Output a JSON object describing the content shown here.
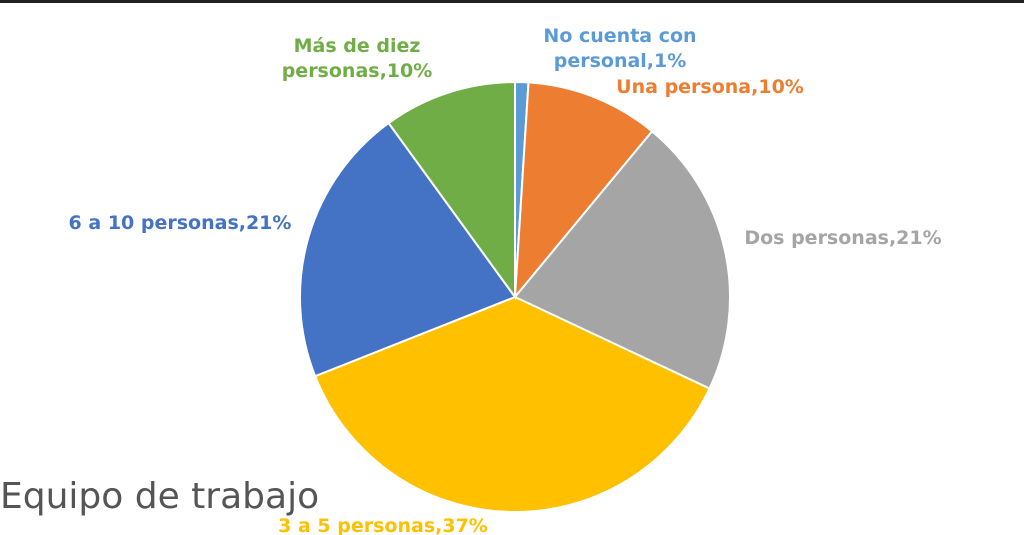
{
  "chart_data": {
    "type": "pie",
    "title": "Equipo de trabajo",
    "slices": [
      {
        "label_lines": [
          "No cuenta con",
          "personal,1%"
        ],
        "category": "No cuenta con personal",
        "value": 1,
        "color": "#5B9BD5"
      },
      {
        "label_lines": [
          "Una persona,10%"
        ],
        "category": "Una persona",
        "value": 10,
        "color": "#ED7D31"
      },
      {
        "label_lines": [
          "Dos personas,21%"
        ],
        "category": "Dos personas",
        "value": 21,
        "color": "#A5A5A5"
      },
      {
        "label_lines": [
          "3 a 5 personas,37%"
        ],
        "category": "3 a 5 personas",
        "value": 37,
        "color": "#FFC000"
      },
      {
        "label_lines": [
          "6 a 10 personas,21%"
        ],
        "category": "6 a 10 personas",
        "value": 21,
        "color": "#4472C4"
      },
      {
        "label_lines": [
          "Más de diez",
          "personas,10%"
        ],
        "category": "Más de diez personas",
        "value": 10,
        "color": "#70AD47"
      }
    ],
    "legend": "none",
    "data_labels": "outside"
  }
}
